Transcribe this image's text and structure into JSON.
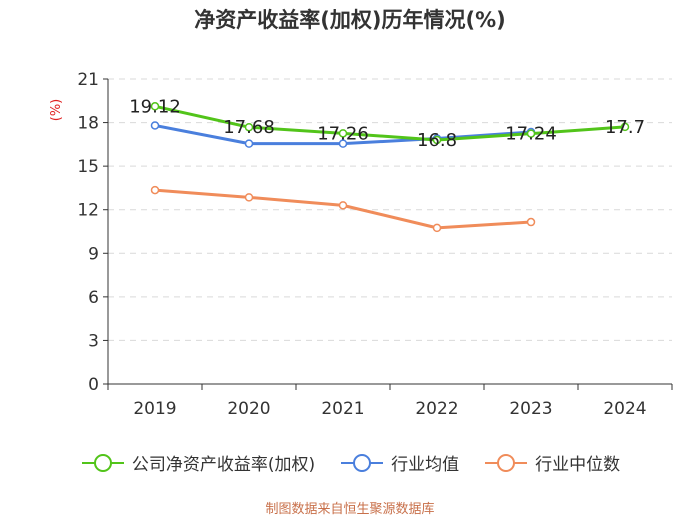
{
  "title": "净资产收益率(加权)历年情况(%)",
  "source": "制图数据来自恒生聚源数据库",
  "colors": {
    "green": "#52c41a",
    "blue": "#4a7fdd",
    "orange": "#f08c5a",
    "axis": "#333333",
    "grid": "#d9d9d9",
    "unit": "#e02020"
  },
  "chart_data": {
    "type": "line",
    "title": "净资产收益率(加权)历年情况(%)",
    "ylabel": "(%)",
    "xlabel": "",
    "ylim": [
      0,
      21
    ],
    "yticks": [
      0,
      3,
      6,
      9,
      12,
      15,
      18,
      21
    ],
    "categories": [
      "2019",
      "2020",
      "2021",
      "2022",
      "2023",
      "2024"
    ],
    "series": [
      {
        "name": "公司净资产收益率(加权)",
        "color": "#52c41a",
        "values": [
          19.12,
          17.68,
          17.26,
          16.8,
          17.24,
          17.7
        ],
        "labels": [
          "19.12",
          "17.68",
          "17.26",
          "16.8",
          "17.24",
          "17.7"
        ]
      },
      {
        "name": "行业均值",
        "color": "#4a7fdd",
        "values": [
          17.8,
          16.55,
          16.55,
          16.9,
          17.35,
          null
        ]
      },
      {
        "name": "行业中位数",
        "color": "#f08c5a",
        "values": [
          13.35,
          12.85,
          12.3,
          10.75,
          11.15,
          null
        ]
      }
    ],
    "legend": "bottom-center"
  }
}
